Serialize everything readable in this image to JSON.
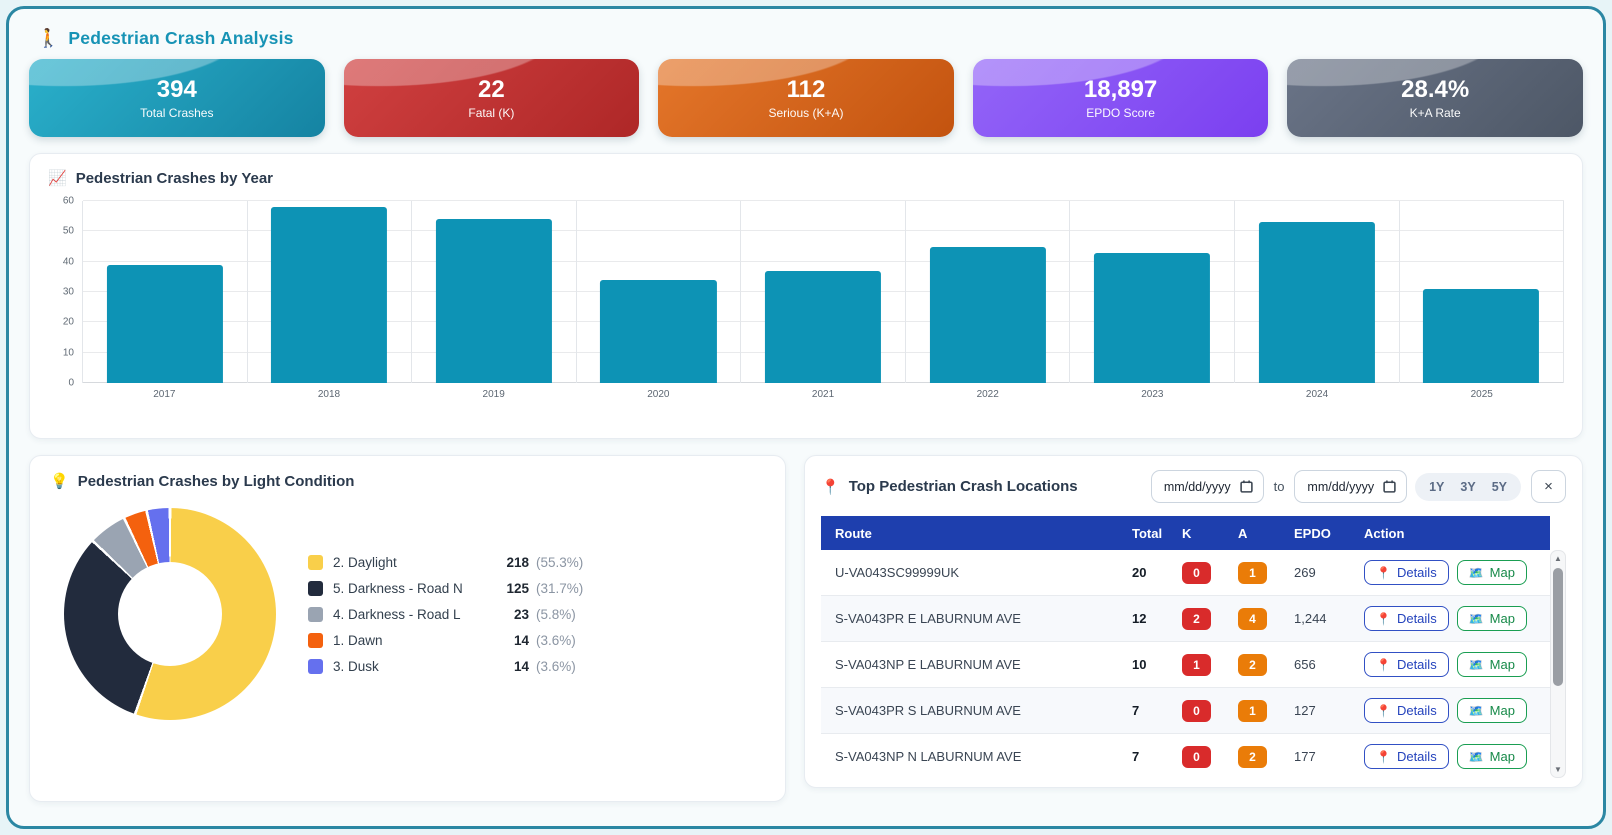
{
  "header": {
    "icon": "🚶",
    "title": "Pedestrian Crash Analysis"
  },
  "kpi_cards": [
    {
      "name": "total-crashes",
      "value": "394",
      "label": "Total Crashes",
      "color": "#2ab0cb",
      "color2": "#1583a2"
    },
    {
      "name": "fatal-k",
      "value": "22",
      "label": "Fatal (K)",
      "color": "#d04040",
      "color2": "#ae2727"
    },
    {
      "name": "serious-ka",
      "value": "112",
      "label": "Serious (K+A)",
      "color": "#e4762a",
      "color2": "#c3530f"
    },
    {
      "name": "epdo-score",
      "value": "18,897",
      "label": "EPDO Score",
      "color": "#9365f8",
      "color2": "#7b3ff0"
    },
    {
      "name": "ka-rate",
      "value": "28.4%",
      "label": "K+A Rate",
      "color": "#6a7487",
      "color2": "#4d5766"
    }
  ],
  "by_year": {
    "icon": "📈",
    "title": "Pedestrian Crashes by Year"
  },
  "light_condition": {
    "icon": "💡",
    "title": "Pedestrian Crashes by Light Condition"
  },
  "chart_data": [
    {
      "type": "bar",
      "title": "Pedestrian Crashes by Year",
      "categories": [
        "2017",
        "2018",
        "2019",
        "2020",
        "2021",
        "2022",
        "2023",
        "2024",
        "2025"
      ],
      "values": [
        39,
        58,
        54,
        34,
        37,
        45,
        43,
        53,
        31
      ],
      "xlabel": "",
      "ylabel": "",
      "ylim": [
        0,
        60
      ],
      "ytick_step": 10,
      "grid": true,
      "legend": "none",
      "bar_color": "#0d93b5"
    },
    {
      "type": "pie",
      "subtype": "donut",
      "title": "Pedestrian Crashes by Light Condition",
      "labels": [
        "2. Daylight",
        "5. Darkness - Road N",
        "4. Darkness - Road L",
        "1. Dawn",
        "3. Dusk"
      ],
      "values": [
        218,
        125,
        23,
        14,
        14
      ],
      "percents": [
        "55.3%",
        "31.7%",
        "5.8%",
        "3.6%",
        "3.6%"
      ],
      "colors": [
        "#f9cf4a",
        "#222b3d",
        "#9aa4b2",
        "#f4610e",
        "#6570ee"
      ],
      "legend_position": "right",
      "start_angle_deg": 0
    }
  ],
  "locations": {
    "icon": "📍",
    "title": "Top Pedestrian Crash Locations",
    "date_from_placeholder": "mm/dd/yyyy",
    "to_label": "to",
    "date_to_placeholder": "mm/dd/yyyy",
    "range_buttons": [
      "1Y",
      "3Y",
      "5Y"
    ],
    "close_label": "×",
    "columns": [
      "Route",
      "Total",
      "K",
      "A",
      "EPDO",
      "Action"
    ],
    "details_label": "Details",
    "details_icon": "📍",
    "map_label": "Map",
    "map_icon": "🗺️",
    "rows": [
      {
        "route": "U-VA043SC99999UK",
        "total": "20",
        "k": "0",
        "a": "1",
        "epdo": "269"
      },
      {
        "route": "S-VA043PR E LABURNUM AVE",
        "total": "12",
        "k": "2",
        "a": "4",
        "epdo": "1,244"
      },
      {
        "route": "S-VA043NP E LABURNUM AVE",
        "total": "10",
        "k": "1",
        "a": "2",
        "epdo": "656"
      },
      {
        "route": "S-VA043PR S LABURNUM AVE",
        "total": "7",
        "k": "0",
        "a": "1",
        "epdo": "127"
      },
      {
        "route": "S-VA043NP N LABURNUM AVE",
        "total": "7",
        "k": "0",
        "a": "2",
        "epdo": "177"
      },
      {
        "route": "",
        "total": "",
        "k": "",
        "a": "",
        "epdo": "",
        "partial": true
      }
    ]
  }
}
